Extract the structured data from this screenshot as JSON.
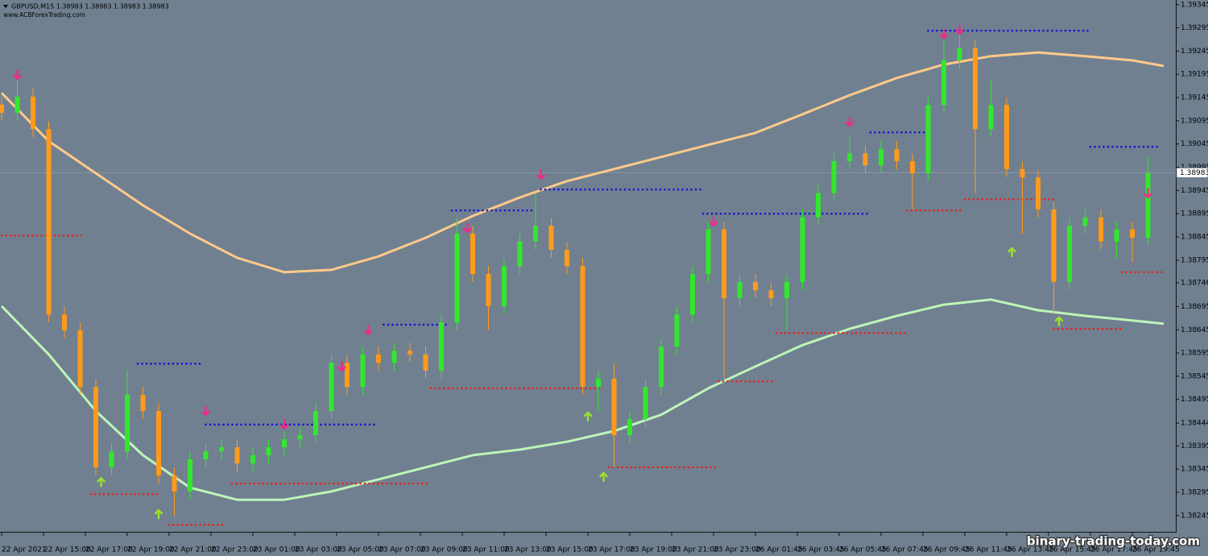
{
  "chart_data": {
    "type": "candlestick",
    "title": "GBPUSD,M15  1.38983 1.38983 1.38983 1.38983",
    "subtitle": "www.ACBForexTrading.com",
    "watermark": "binary-trading-today.com",
    "last_price": 1.38983,
    "up_color": "#33e62e",
    "down_color": "#ff9a1c",
    "xlim": [
      0,
      224
    ],
    "ylim": [
      1.3821,
      1.39355
    ],
    "yticks": [
      1.39345,
      1.39295,
      1.39245,
      1.39195,
      1.39145,
      1.39095,
      1.39045,
      1.38995,
      1.38945,
      1.38895,
      1.38845,
      1.38795,
      1.38746,
      1.38695,
      1.38645,
      1.38595,
      1.38545,
      1.38495,
      1.38444,
      1.38395,
      1.38345,
      1.38295,
      1.38245
    ],
    "xticks": [
      {
        "value": 0,
        "label": "22 Apr 2021"
      },
      {
        "value": 8,
        "label": "22 Apr 15:00"
      },
      {
        "value": 16,
        "label": "22 Apr 17:00"
      },
      {
        "value": 24,
        "label": "22 Apr 19:00"
      },
      {
        "value": 32,
        "label": "22 Apr 21:00"
      },
      {
        "value": 40,
        "label": "22 Apr 23:00"
      },
      {
        "value": 48,
        "label": "23 Apr 01:00"
      },
      {
        "value": 56,
        "label": "23 Apr 03:00"
      },
      {
        "value": 64,
        "label": "23 Apr 05:00"
      },
      {
        "value": 72,
        "label": "23 Apr 07:00"
      },
      {
        "value": 80,
        "label": "23 Apr 09:00"
      },
      {
        "value": 88,
        "label": "23 Apr 11:00"
      },
      {
        "value": 96,
        "label": "23 Apr 13:00"
      },
      {
        "value": 104,
        "label": "23 Apr 15:00"
      },
      {
        "value": 112,
        "label": "23 Apr 17:00"
      },
      {
        "value": 120,
        "label": "23 Apr 19:00"
      },
      {
        "value": 128,
        "label": "23 Apr 21:00"
      },
      {
        "value": 136,
        "label": "23 Apr 23:00"
      },
      {
        "value": 144,
        "label": "26 Apr 01:45"
      },
      {
        "value": 152,
        "label": "26 Apr 03:45"
      },
      {
        "value": 160,
        "label": "26 Apr 05:45"
      },
      {
        "value": 168,
        "label": "26 Apr 07:45"
      },
      {
        "value": 176,
        "label": "26 Apr 09:45"
      },
      {
        "value": 184,
        "label": "26 Apr 11:45"
      },
      {
        "value": 192,
        "label": "26 Apr 13:45"
      },
      {
        "value": 200,
        "label": "26 Apr 15:45"
      },
      {
        "value": 208,
        "label": "26 Apr 17:45"
      },
      {
        "value": 216,
        "label": "26 Apr 19:45"
      }
    ],
    "x": [
      0,
      3,
      6,
      9,
      12,
      15,
      18,
      21,
      24,
      27,
      30,
      33,
      36,
      39,
      42,
      45,
      48,
      51,
      54,
      57,
      60,
      63,
      66,
      69,
      72,
      75,
      78,
      81,
      84,
      87,
      90,
      93,
      96,
      99,
      102,
      105,
      108,
      111,
      114,
      117,
      120,
      123,
      126,
      129,
      132,
      135,
      138,
      141,
      144,
      147,
      150,
      153,
      156,
      159,
      162,
      165,
      168,
      171,
      174,
      177,
      180,
      183,
      186,
      189,
      192,
      195,
      198,
      201,
      204,
      207,
      210,
      213,
      216,
      219
    ],
    "open": [
      1.3913,
      1.39112,
      1.39147,
      1.39077,
      1.38678,
      1.38644,
      1.38522,
      1.38349,
      1.38383,
      1.38505,
      1.3847,
      1.38331,
      1.38297,
      1.38366,
      1.38383,
      1.38392,
      1.38357,
      1.38375,
      1.38392,
      1.38409,
      1.38418,
      1.3847,
      1.38574,
      1.38522,
      1.38592,
      1.38574,
      1.386,
      1.38592,
      1.38557,
      1.38661,
      1.38852,
      1.38765,
      1.38696,
      1.38782,
      1.38835,
      1.38869,
      1.38817,
      1.38782,
      1.38522,
      1.3854,
      1.38418,
      1.38453,
      1.38522,
      1.38609,
      1.38678,
      1.38765,
      1.38861,
      1.38713,
      1.38748,
      1.3873,
      1.38713,
      1.38748,
      1.38887,
      1.38939,
      1.39008,
      1.39025,
      1.38999,
      1.39034,
      1.39008,
      1.38982,
      1.39129,
      1.39225,
      1.39251,
      1.39077,
      1.39129,
      1.38991,
      1.38973,
      1.38904,
      1.38748,
      1.38869,
      1.38887,
      1.38835,
      1.38861,
      1.38843
    ],
    "high": [
      1.39147,
      1.392,
      1.39164,
      1.39094,
      1.38695,
      1.38661,
      1.38539,
      1.384,
      1.38557,
      1.38522,
      1.38487,
      1.38348,
      1.38383,
      1.384,
      1.38409,
      1.38409,
      1.38392,
      1.38409,
      1.38426,
      1.38435,
      1.38487,
      1.38591,
      1.38591,
      1.38609,
      1.38609,
      1.38617,
      1.38617,
      1.38609,
      1.38678,
      1.38887,
      1.38869,
      1.38782,
      1.38799,
      1.38852,
      1.38939,
      1.38886,
      1.38834,
      1.38799,
      1.38557,
      1.38574,
      1.3847,
      1.38539,
      1.38626,
      1.38695,
      1.38782,
      1.38878,
      1.38878,
      1.38765,
      1.38765,
      1.38747,
      1.38765,
      1.38904,
      1.38956,
      1.39025,
      1.3906,
      1.39042,
      1.39051,
      1.39051,
      1.39025,
      1.39146,
      1.39268,
      1.39285,
      1.39268,
      1.39181,
      1.39146,
      1.39008,
      1.3899,
      1.38921,
      1.38886,
      1.38904,
      1.38904,
      1.38878,
      1.38878,
      1.39017
    ],
    "low": [
      1.39095,
      1.39095,
      1.3906,
      1.38661,
      1.38627,
      1.38505,
      1.38332,
      1.38332,
      1.38366,
      1.38453,
      1.38314,
      1.38245,
      1.3828,
      1.38349,
      1.38366,
      1.3834,
      1.3834,
      1.38358,
      1.38375,
      1.38392,
      1.38401,
      1.38453,
      1.38505,
      1.38505,
      1.38557,
      1.38557,
      1.38575,
      1.3854,
      1.3854,
      1.38644,
      1.38748,
      1.38644,
      1.38679,
      1.38765,
      1.38818,
      1.388,
      1.38765,
      1.38505,
      1.3847,
      1.38349,
      1.38401,
      1.38436,
      1.38505,
      1.38592,
      1.38661,
      1.38748,
      1.3854,
      1.38696,
      1.38713,
      1.38696,
      1.38644,
      1.38731,
      1.3887,
      1.38922,
      1.38991,
      1.38982,
      1.38982,
      1.38991,
      1.38904,
      1.38965,
      1.39112,
      1.39208,
      1.38939,
      1.3906,
      1.38974,
      1.38852,
      1.38887,
      1.38678,
      1.38731,
      1.38852,
      1.38818,
      1.388,
      1.3879,
      1.38826
    ],
    "close": [
      1.39112,
      1.39147,
      1.39077,
      1.38678,
      1.38644,
      1.38522,
      1.38349,
      1.38383,
      1.38505,
      1.3847,
      1.38331,
      1.38297,
      1.38366,
      1.38383,
      1.38392,
      1.38357,
      1.38375,
      1.38392,
      1.38409,
      1.38418,
      1.3847,
      1.38574,
      1.38522,
      1.38592,
      1.38574,
      1.386,
      1.38592,
      1.38557,
      1.38661,
      1.38852,
      1.38765,
      1.38696,
      1.38782,
      1.38835,
      1.38869,
      1.38817,
      1.38782,
      1.38522,
      1.3854,
      1.38418,
      1.38453,
      1.38522,
      1.38609,
      1.38678,
      1.38765,
      1.38861,
      1.38713,
      1.38748,
      1.3873,
      1.38713,
      1.38748,
      1.38887,
      1.38939,
      1.39008,
      1.39025,
      1.38999,
      1.39034,
      1.39008,
      1.38982,
      1.39129,
      1.39225,
      1.39251,
      1.39077,
      1.39129,
      1.38991,
      1.38973,
      1.38904,
      1.38748,
      1.38869,
      1.38887,
      1.38835,
      1.38861,
      1.38843,
      1.38982
    ],
    "lines": [
      {
        "color": "#ffc98a",
        "x": [
          0,
          9,
          18,
          27,
          36,
          45,
          54,
          63,
          72,
          81,
          90,
          99,
          108,
          117,
          126,
          135,
          144,
          153,
          162,
          171,
          180,
          189,
          198,
          207,
          216,
          222
        ],
        "values": [
          1.39155,
          1.39051,
          1.38982,
          1.38913,
          1.38852,
          1.388,
          1.38769,
          1.38774,
          1.38803,
          1.38843,
          1.3889,
          1.3893,
          1.38965,
          1.38991,
          1.39017,
          1.39043,
          1.39069,
          1.39109,
          1.3915,
          1.39187,
          1.39216,
          1.39234,
          1.39242,
          1.39234,
          1.39225,
          1.39213
        ]
      },
      {
        "color": "#bdf5b8",
        "x": [
          0,
          9,
          18,
          27,
          36,
          45,
          54,
          63,
          72,
          81,
          90,
          99,
          108,
          117,
          126,
          135,
          144,
          153,
          162,
          171,
          180,
          189,
          198,
          207,
          216,
          222
        ],
        "values": [
          1.38696,
          1.38592,
          1.3847,
          1.38375,
          1.38305,
          1.38279,
          1.38279,
          1.38297,
          1.38323,
          1.38349,
          1.38375,
          1.38387,
          1.38404,
          1.38427,
          1.38462,
          1.38519,
          1.38566,
          1.38612,
          1.38647,
          1.38675,
          1.38699,
          1.3871,
          1.38687,
          1.38675,
          1.38665,
          1.38658
        ]
      }
    ],
    "levels": [
      {
        "color": "#e8221c",
        "segments": [
          {
            "x": [
              0,
              16
            ],
            "value": 1.38848
          },
          {
            "x": [
              17,
              30
            ],
            "value": 1.38291
          },
          {
            "x": [
              32,
              43
            ],
            "value": 1.38225
          },
          {
            "x": [
              44,
              82
            ],
            "value": 1.38314
          },
          {
            "x": [
              82,
              115
            ],
            "value": 1.38519
          },
          {
            "x": [
              116,
              137
            ],
            "value": 1.38349
          },
          {
            "x": [
              137,
              148
            ],
            "value": 1.38534
          },
          {
            "x": [
              148,
              173
            ],
            "value": 1.38638
          },
          {
            "x": [
              173,
              184
            ],
            "value": 1.38902
          },
          {
            "x": [
              184,
              201
            ],
            "value": 1.38926
          },
          {
            "x": [
              201,
              214
            ],
            "value": 1.38647
          },
          {
            "x": [
              214,
              222
            ],
            "value": 1.38769
          }
        ]
      },
      {
        "color": "#1414d2",
        "segments": [
          {
            "x": [
              26,
              38
            ],
            "value": 1.38572
          },
          {
            "x": [
              39,
              72
            ],
            "value": 1.38441
          },
          {
            "x": [
              73,
              85
            ],
            "value": 1.38656
          },
          {
            "x": [
              86,
              102
            ],
            "value": 1.38902
          },
          {
            "x": [
              103,
              134
            ],
            "value": 1.38947
          },
          {
            "x": [
              134,
              166
            ],
            "value": 1.38895
          },
          {
            "x": [
              166,
              177
            ],
            "value": 1.3907
          },
          {
            "x": [
              177,
              208
            ],
            "value": 1.39289
          },
          {
            "x": [
              208,
              221
            ],
            "value": 1.39039
          }
        ]
      }
    ],
    "signals": {
      "sell": {
        "color": "#f0288c",
        "x": [
          3,
          39,
          54,
          65,
          70,
          89,
          103,
          136,
          162,
          180,
          183,
          219
        ],
        "y": [
          1.39194,
          1.3847,
          1.38441,
          1.38566,
          1.38644,
          1.38864,
          1.38979,
          1.38878,
          1.39093,
          1.39282,
          1.39291,
          1.38939
        ]
      },
      "buy": {
        "color": "#9be22a",
        "x": [
          19,
          30,
          112,
          115,
          193,
          202
        ],
        "y": [
          1.38317,
          1.38248,
          1.38458,
          1.38328,
          1.38812,
          1.38663
        ]
      }
    }
  }
}
